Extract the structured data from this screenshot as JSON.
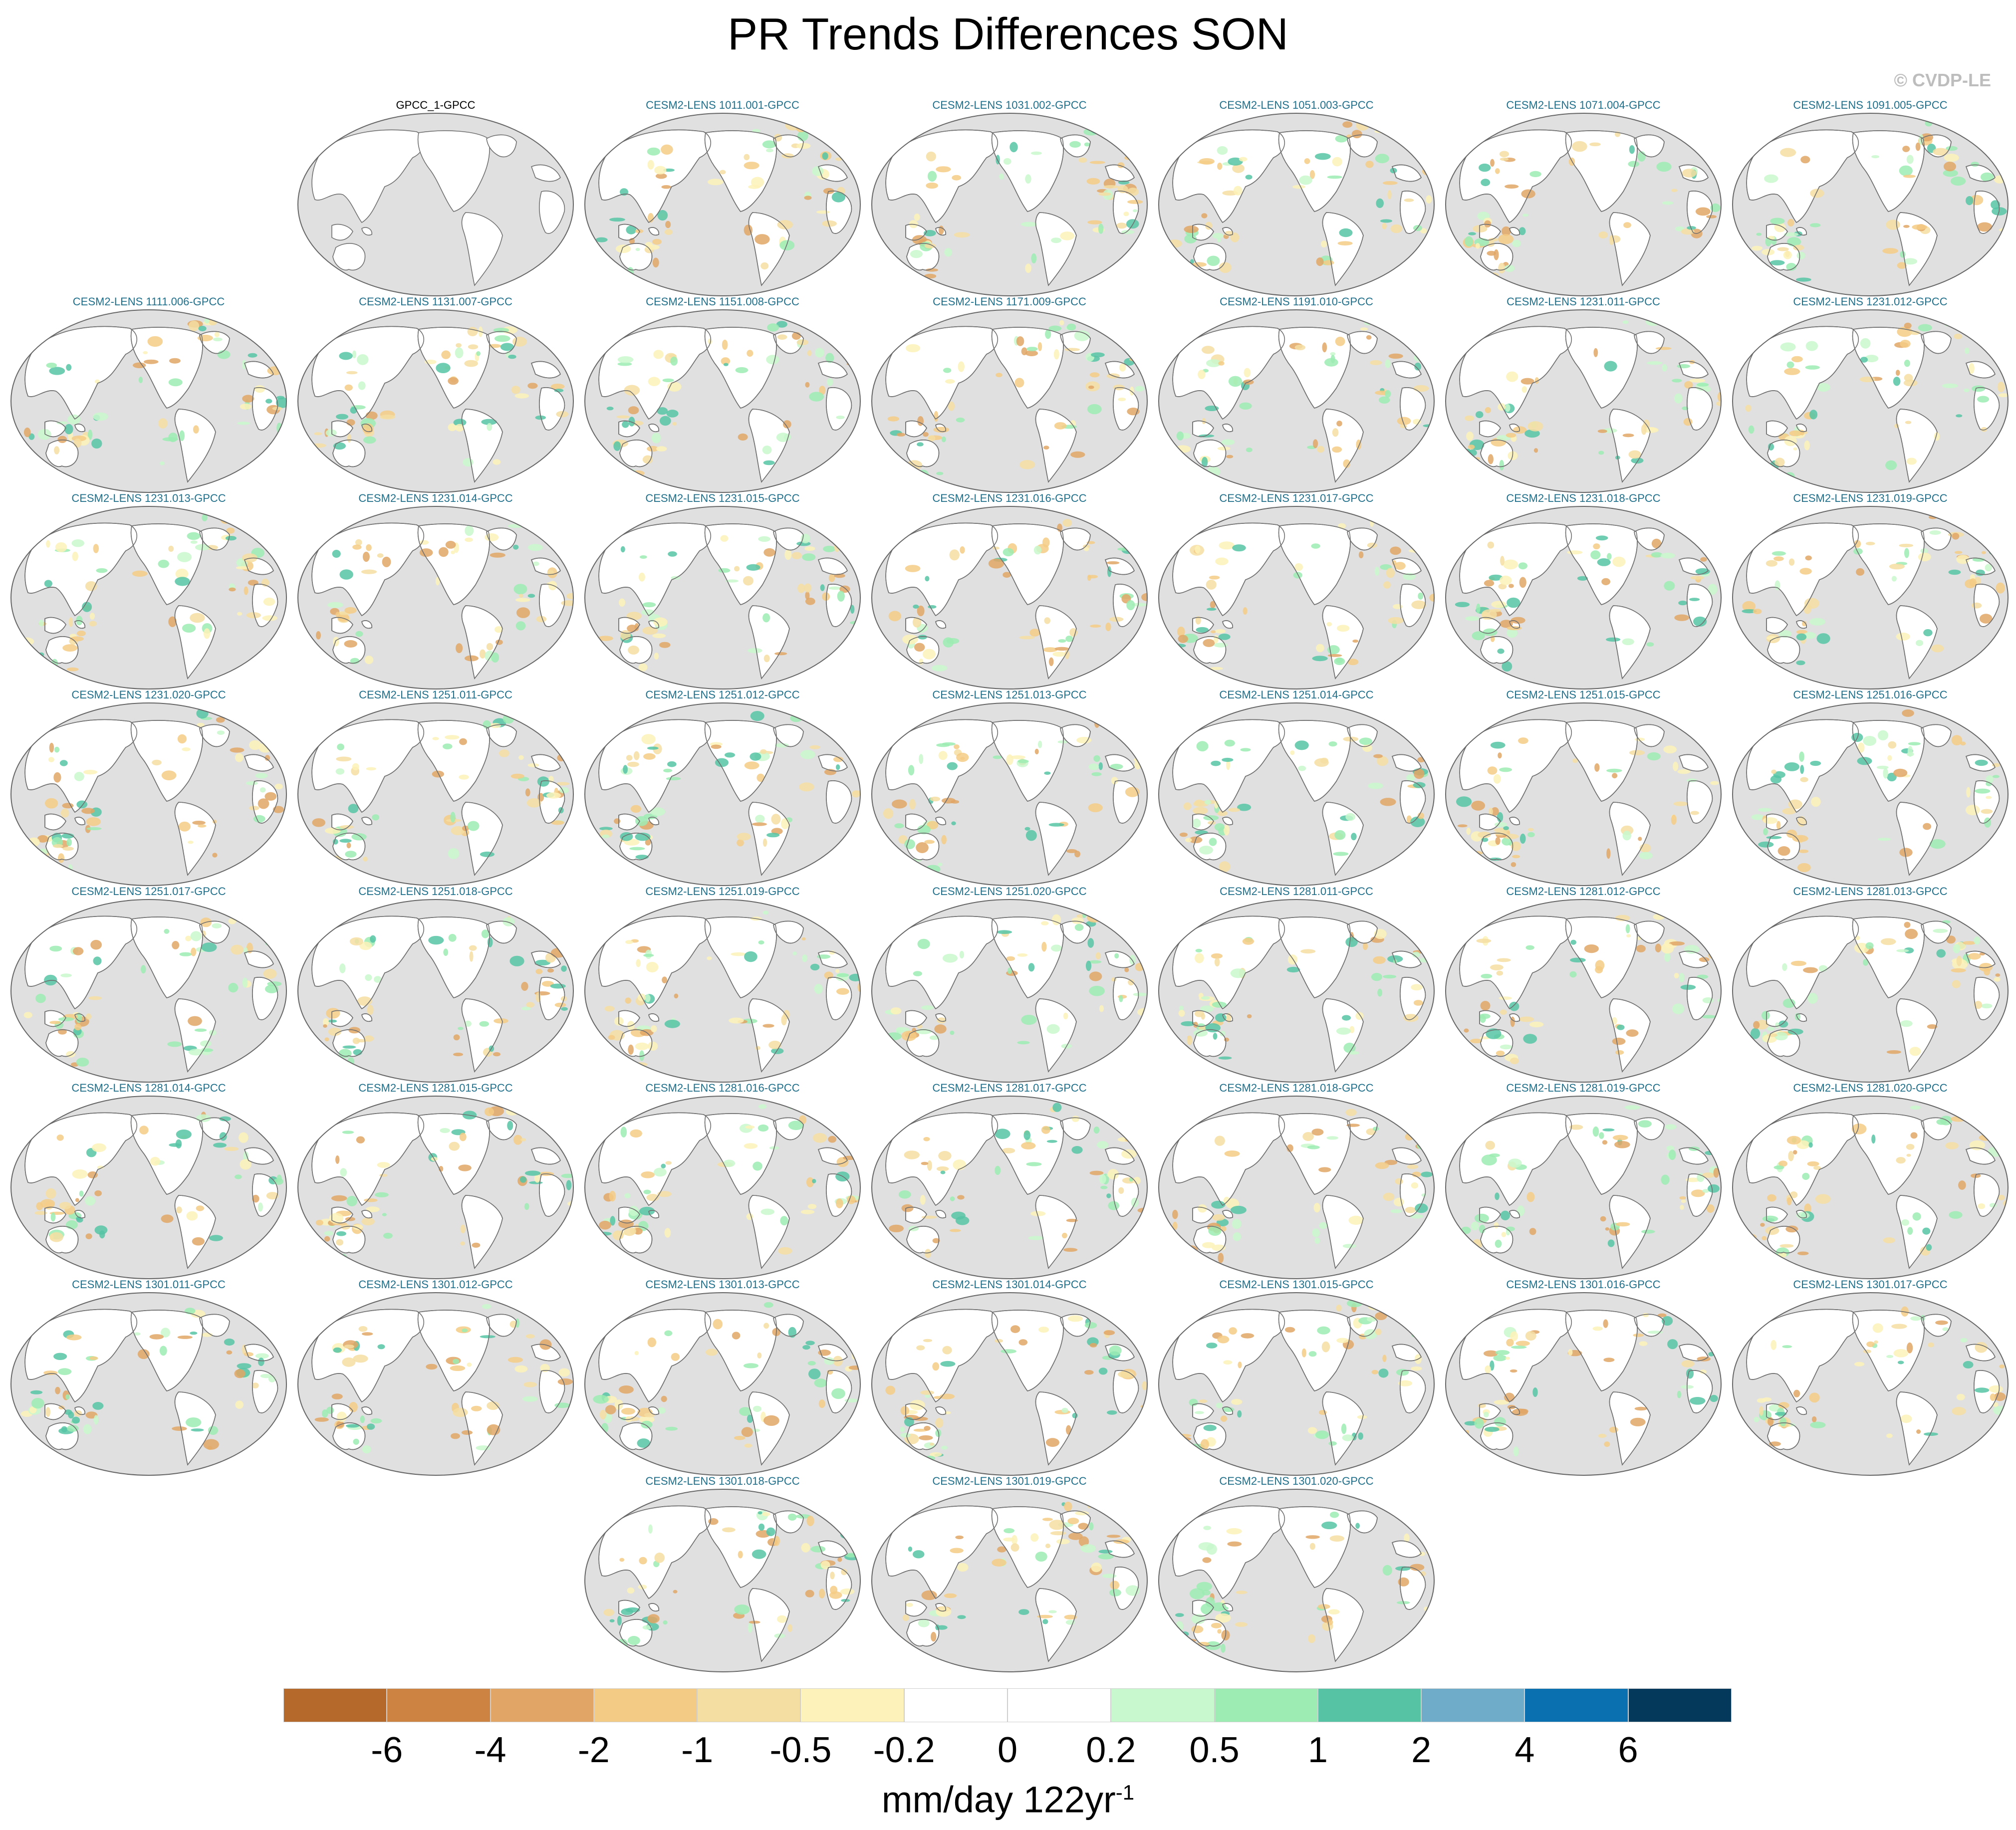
{
  "title": "PR Trends Differences SON",
  "copyright": "© CVDP-LE",
  "colors": {
    "ocean": "#e0e0e0",
    "land": "#ffffff",
    "coast": "#707070",
    "obs_title": "#000000",
    "model_title": "#1f6f8b"
  },
  "panels": [
    {
      "label": "GPCC_1-GPCC",
      "kind": "observation"
    },
    {
      "label": "CESM2-LENS 1011.001-GPCC",
      "kind": "model"
    },
    {
      "label": "CESM2-LENS 1031.002-GPCC",
      "kind": "model"
    },
    {
      "label": "CESM2-LENS 1051.003-GPCC",
      "kind": "model"
    },
    {
      "label": "CESM2-LENS 1071.004-GPCC",
      "kind": "model"
    },
    {
      "label": "CESM2-LENS 1091.005-GPCC",
      "kind": "model"
    },
    {
      "label": "CESM2-LENS 1111.006-GPCC",
      "kind": "model"
    },
    {
      "label": "CESM2-LENS 1131.007-GPCC",
      "kind": "model"
    },
    {
      "label": "CESM2-LENS 1151.008-GPCC",
      "kind": "model"
    },
    {
      "label": "CESM2-LENS 1171.009-GPCC",
      "kind": "model"
    },
    {
      "label": "CESM2-LENS 1191.010-GPCC",
      "kind": "model"
    },
    {
      "label": "CESM2-LENS 1231.011-GPCC",
      "kind": "model"
    },
    {
      "label": "CESM2-LENS 1231.012-GPCC",
      "kind": "model"
    },
    {
      "label": "CESM2-LENS 1231.013-GPCC",
      "kind": "model"
    },
    {
      "label": "CESM2-LENS 1231.014-GPCC",
      "kind": "model"
    },
    {
      "label": "CESM2-LENS 1231.015-GPCC",
      "kind": "model"
    },
    {
      "label": "CESM2-LENS 1231.016-GPCC",
      "kind": "model"
    },
    {
      "label": "CESM2-LENS 1231.017-GPCC",
      "kind": "model"
    },
    {
      "label": "CESM2-LENS 1231.018-GPCC",
      "kind": "model"
    },
    {
      "label": "CESM2-LENS 1231.019-GPCC",
      "kind": "model"
    },
    {
      "label": "CESM2-LENS 1231.020-GPCC",
      "kind": "model"
    },
    {
      "label": "CESM2-LENS 1251.011-GPCC",
      "kind": "model"
    },
    {
      "label": "CESM2-LENS 1251.012-GPCC",
      "kind": "model"
    },
    {
      "label": "CESM2-LENS 1251.013-GPCC",
      "kind": "model"
    },
    {
      "label": "CESM2-LENS 1251.014-GPCC",
      "kind": "model"
    },
    {
      "label": "CESM2-LENS 1251.015-GPCC",
      "kind": "model"
    },
    {
      "label": "CESM2-LENS 1251.016-GPCC",
      "kind": "model"
    },
    {
      "label": "CESM2-LENS 1251.017-GPCC",
      "kind": "model"
    },
    {
      "label": "CESM2-LENS 1251.018-GPCC",
      "kind": "model"
    },
    {
      "label": "CESM2-LENS 1251.019-GPCC",
      "kind": "model"
    },
    {
      "label": "CESM2-LENS 1251.020-GPCC",
      "kind": "model"
    },
    {
      "label": "CESM2-LENS 1281.011-GPCC",
      "kind": "model"
    },
    {
      "label": "CESM2-LENS 1281.012-GPCC",
      "kind": "model"
    },
    {
      "label": "CESM2-LENS 1281.013-GPCC",
      "kind": "model"
    },
    {
      "label": "CESM2-LENS 1281.014-GPCC",
      "kind": "model"
    },
    {
      "label": "CESM2-LENS 1281.015-GPCC",
      "kind": "model"
    },
    {
      "label": "CESM2-LENS 1281.016-GPCC",
      "kind": "model"
    },
    {
      "label": "CESM2-LENS 1281.017-GPCC",
      "kind": "model"
    },
    {
      "label": "CESM2-LENS 1281.018-GPCC",
      "kind": "model"
    },
    {
      "label": "CESM2-LENS 1281.019-GPCC",
      "kind": "model"
    },
    {
      "label": "CESM2-LENS 1281.020-GPCC",
      "kind": "model"
    },
    {
      "label": "CESM2-LENS 1301.011-GPCC",
      "kind": "model"
    },
    {
      "label": "CESM2-LENS 1301.012-GPCC",
      "kind": "model"
    },
    {
      "label": "CESM2-LENS 1301.013-GPCC",
      "kind": "model"
    },
    {
      "label": "CESM2-LENS 1301.014-GPCC",
      "kind": "model"
    },
    {
      "label": "CESM2-LENS 1301.015-GPCC",
      "kind": "model"
    },
    {
      "label": "CESM2-LENS 1301.016-GPCC",
      "kind": "model"
    },
    {
      "label": "CESM2-LENS 1301.017-GPCC",
      "kind": "model"
    },
    {
      "label": "CESM2-LENS 1301.018-GPCC",
      "kind": "model"
    },
    {
      "label": "CESM2-LENS 1301.019-GPCC",
      "kind": "model"
    },
    {
      "label": "CESM2-LENS 1301.020-GPCC",
      "kind": "model"
    }
  ],
  "colorbar": {
    "colors": [
      "#b5692a",
      "#cd8342",
      "#e1a665",
      "#f4cb84",
      "#f5dea2",
      "#fdf2b9",
      "#ffffff",
      "#ffffff",
      "#c8f8cd",
      "#9cecb3",
      "#56c4a4",
      "#6facca",
      "#0a70b0",
      "#05395c"
    ],
    "labels": [
      "-6",
      "-4",
      "-2",
      "-1",
      "-0.5",
      "-0.2",
      "0",
      "0.2",
      "0.5",
      "1",
      "2",
      "4",
      "6"
    ],
    "units_main": "mm/day 122yr",
    "units_sup": "-1"
  }
}
